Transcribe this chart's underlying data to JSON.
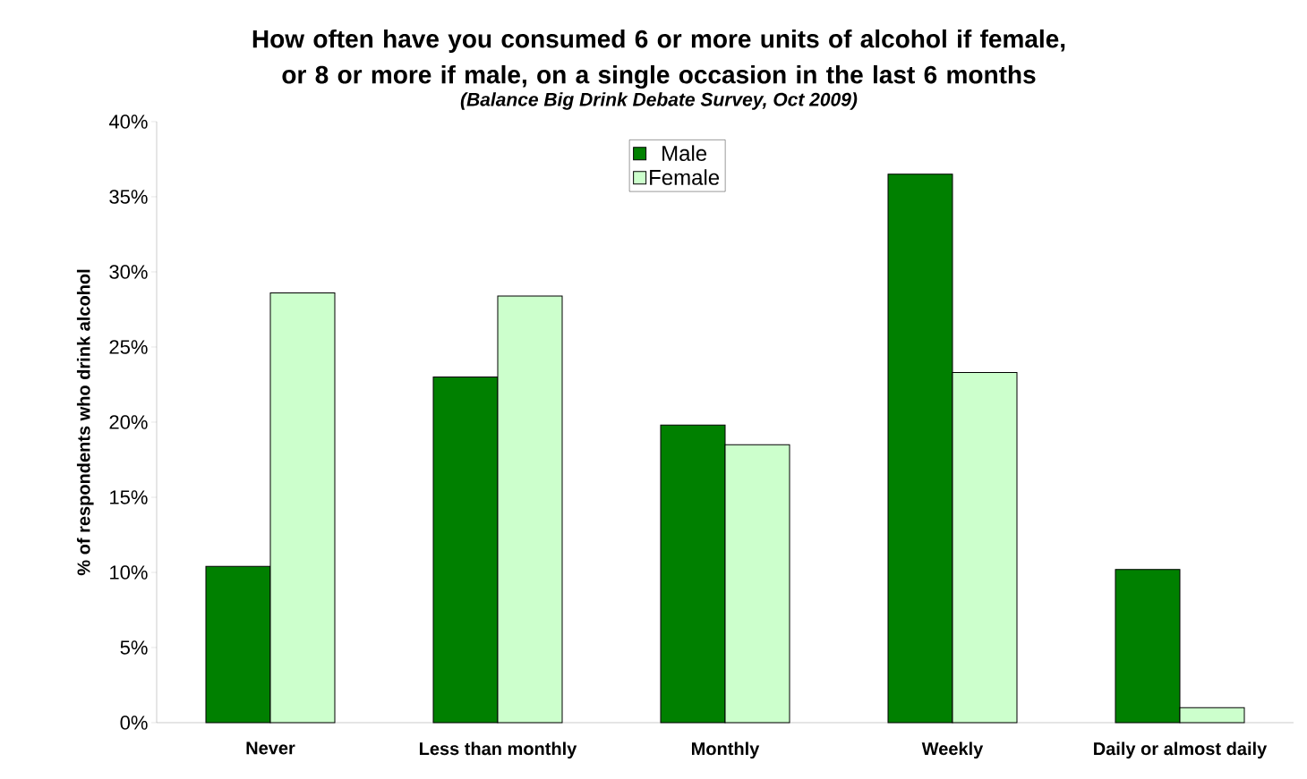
{
  "chart_data": {
    "type": "bar",
    "title": "How often have you consumed 6 or more units of alcohol if female, or 8 or more if male, on a single occasion in the last 6 months",
    "subtitle": "(Balance Big Drink Debate Survey, Oct 2009)",
    "ylabel": "% of respondents who drink alcohol",
    "categories": [
      "Never",
      "Less than monthly",
      "Monthly",
      "Weekly",
      "Daily or almost daily"
    ],
    "series": [
      {
        "name": "Male",
        "color": "#008000",
        "values": [
          10.4,
          23.0,
          19.8,
          36.5,
          10.2
        ]
      },
      {
        "name": "Female",
        "color": "#ccffcc",
        "values": [
          28.6,
          28.4,
          18.5,
          23.3,
          1.0
        ]
      }
    ],
    "ylim": [
      0,
      40
    ],
    "yticks": [
      {
        "value": 0,
        "label": "0%"
      },
      {
        "value": 5,
        "label": "5%"
      },
      {
        "value": 10,
        "label": "10%"
      },
      {
        "value": 15,
        "label": "15%"
      },
      {
        "value": 20,
        "label": "20%"
      },
      {
        "value": 25,
        "label": "25%"
      },
      {
        "value": 30,
        "label": "30%"
      },
      {
        "value": 35,
        "label": "35%"
      },
      {
        "value": 40,
        "label": "40%"
      }
    ],
    "legend": "top"
  }
}
